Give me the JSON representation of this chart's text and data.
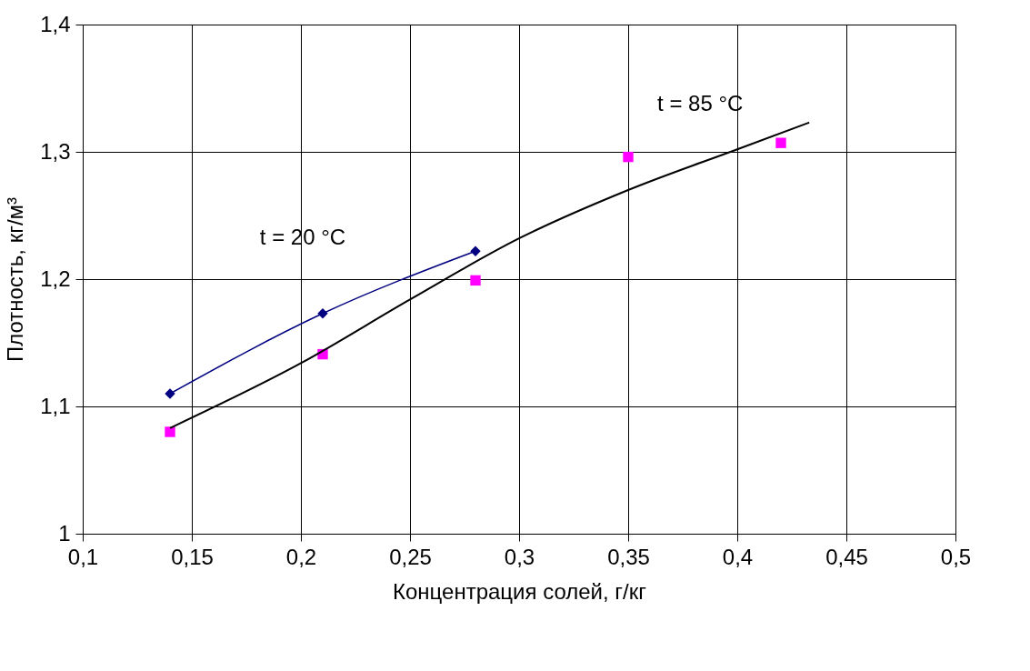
{
  "chart_data": {
    "type": "scatter",
    "xlabel": "Концентрация солей, г/кг",
    "ylabel": "Плотность, кг/м³",
    "xlim": [
      0.1,
      0.5
    ],
    "ylim": [
      1.0,
      1.4
    ],
    "xticks": [
      {
        "value": 0.1,
        "label": "0,1"
      },
      {
        "value": 0.15,
        "label": "0,15"
      },
      {
        "value": 0.2,
        "label": "0,2"
      },
      {
        "value": 0.25,
        "label": "0,25"
      },
      {
        "value": 0.3,
        "label": "0,3"
      },
      {
        "value": 0.35,
        "label": "0,35"
      },
      {
        "value": 0.4,
        "label": "0,4"
      },
      {
        "value": 0.45,
        "label": "0,45"
      },
      {
        "value": 0.5,
        "label": "0,5"
      }
    ],
    "yticks": [
      1,
      {
        "value": 1.1,
        "label": "1,1"
      },
      {
        "value": 1.2,
        "label": "1,2"
      },
      {
        "value": 1.3,
        "label": "1,3"
      },
      {
        "value": 1.4,
        "label": "1,4"
      }
    ],
    "grid": true,
    "series": [
      {
        "type": "line",
        "name": "t = 20 °C",
        "color": "#000080",
        "marker": "diamond",
        "line_style": "solid",
        "x": [
          0.14,
          0.21,
          0.28
        ],
        "values": [
          1.11,
          1.173,
          1.222
        ]
      },
      {
        "color": "#ff00ff",
        "marker": "square",
        "x": [
          0.14,
          0.21,
          0.28,
          0.35,
          0.42
        ],
        "values": [
          1.08,
          1.141,
          1.199,
          1.296,
          1.307
        ]
      },
      {
        "type": "line",
        "name": "t = 85 °C",
        "color": "#000000",
        "marker": "none",
        "line_style": "solid",
        "x": [
          0.14,
          0.2,
          0.25,
          0.3,
          0.35,
          0.4,
          0.433
        ],
        "values": [
          1.083,
          1.134,
          1.184,
          1.232,
          1.27,
          1.302,
          1.323
        ]
      }
    ]
  }
}
